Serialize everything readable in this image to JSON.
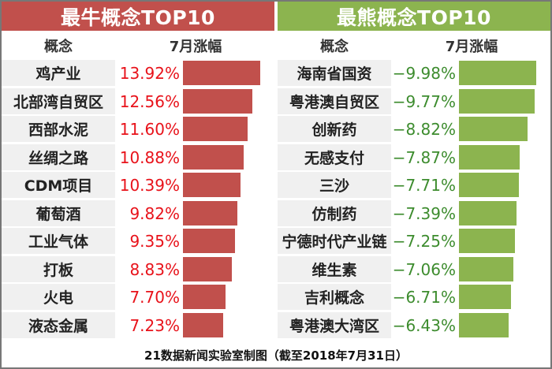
{
  "colors": {
    "bull": "#c1504c",
    "bear": "#8cb44f",
    "bull_text": "#e8121a",
    "bear_text": "#3d8c2e"
  },
  "footer": "21数据新闻实验室制图（截至2018年7月31日）",
  "chart_data": [
    {
      "type": "bar",
      "title": "最牛概念TOP10",
      "header_category": "概念",
      "header_value": "7月涨幅",
      "categories": [
        "鸡产业",
        "北部湾自贸区",
        "西部水泥",
        "丝绸之路",
        "CDM项目",
        "葡萄酒",
        "工业气体",
        "打板",
        "火电",
        "液态金属"
      ],
      "values": [
        13.92,
        12.56,
        11.6,
        10.88,
        10.39,
        9.82,
        9.35,
        8.83,
        7.7,
        7.23
      ],
      "labels": [
        "13.92%",
        "12.56%",
        "11.60%",
        "10.88%",
        "10.39%",
        "9.82%",
        "9.35%",
        "8.83%",
        "7.70%",
        "7.23%"
      ],
      "unit": "%"
    },
    {
      "type": "bar",
      "title": "最熊概念TOP10",
      "header_category": "概念",
      "header_value": "7月涨幅",
      "categories": [
        "海南省国资",
        "粤港澳自贸区",
        "创新药",
        "无感支付",
        "三沙",
        "仿制药",
        "宁德时代产业链",
        "维生素",
        "吉利概念",
        "粤港澳大湾区"
      ],
      "values": [
        -9.98,
        -9.77,
        -8.82,
        -7.87,
        -7.71,
        -7.39,
        -7.25,
        -7.06,
        -6.71,
        -6.43
      ],
      "labels": [
        "−9.98%",
        "−9.77%",
        "−8.82%",
        "−7.87%",
        "−7.71%",
        "−7.39%",
        "−7.25%",
        "−7.06%",
        "−6.71%",
        "−6.43%"
      ],
      "unit": "%"
    }
  ]
}
